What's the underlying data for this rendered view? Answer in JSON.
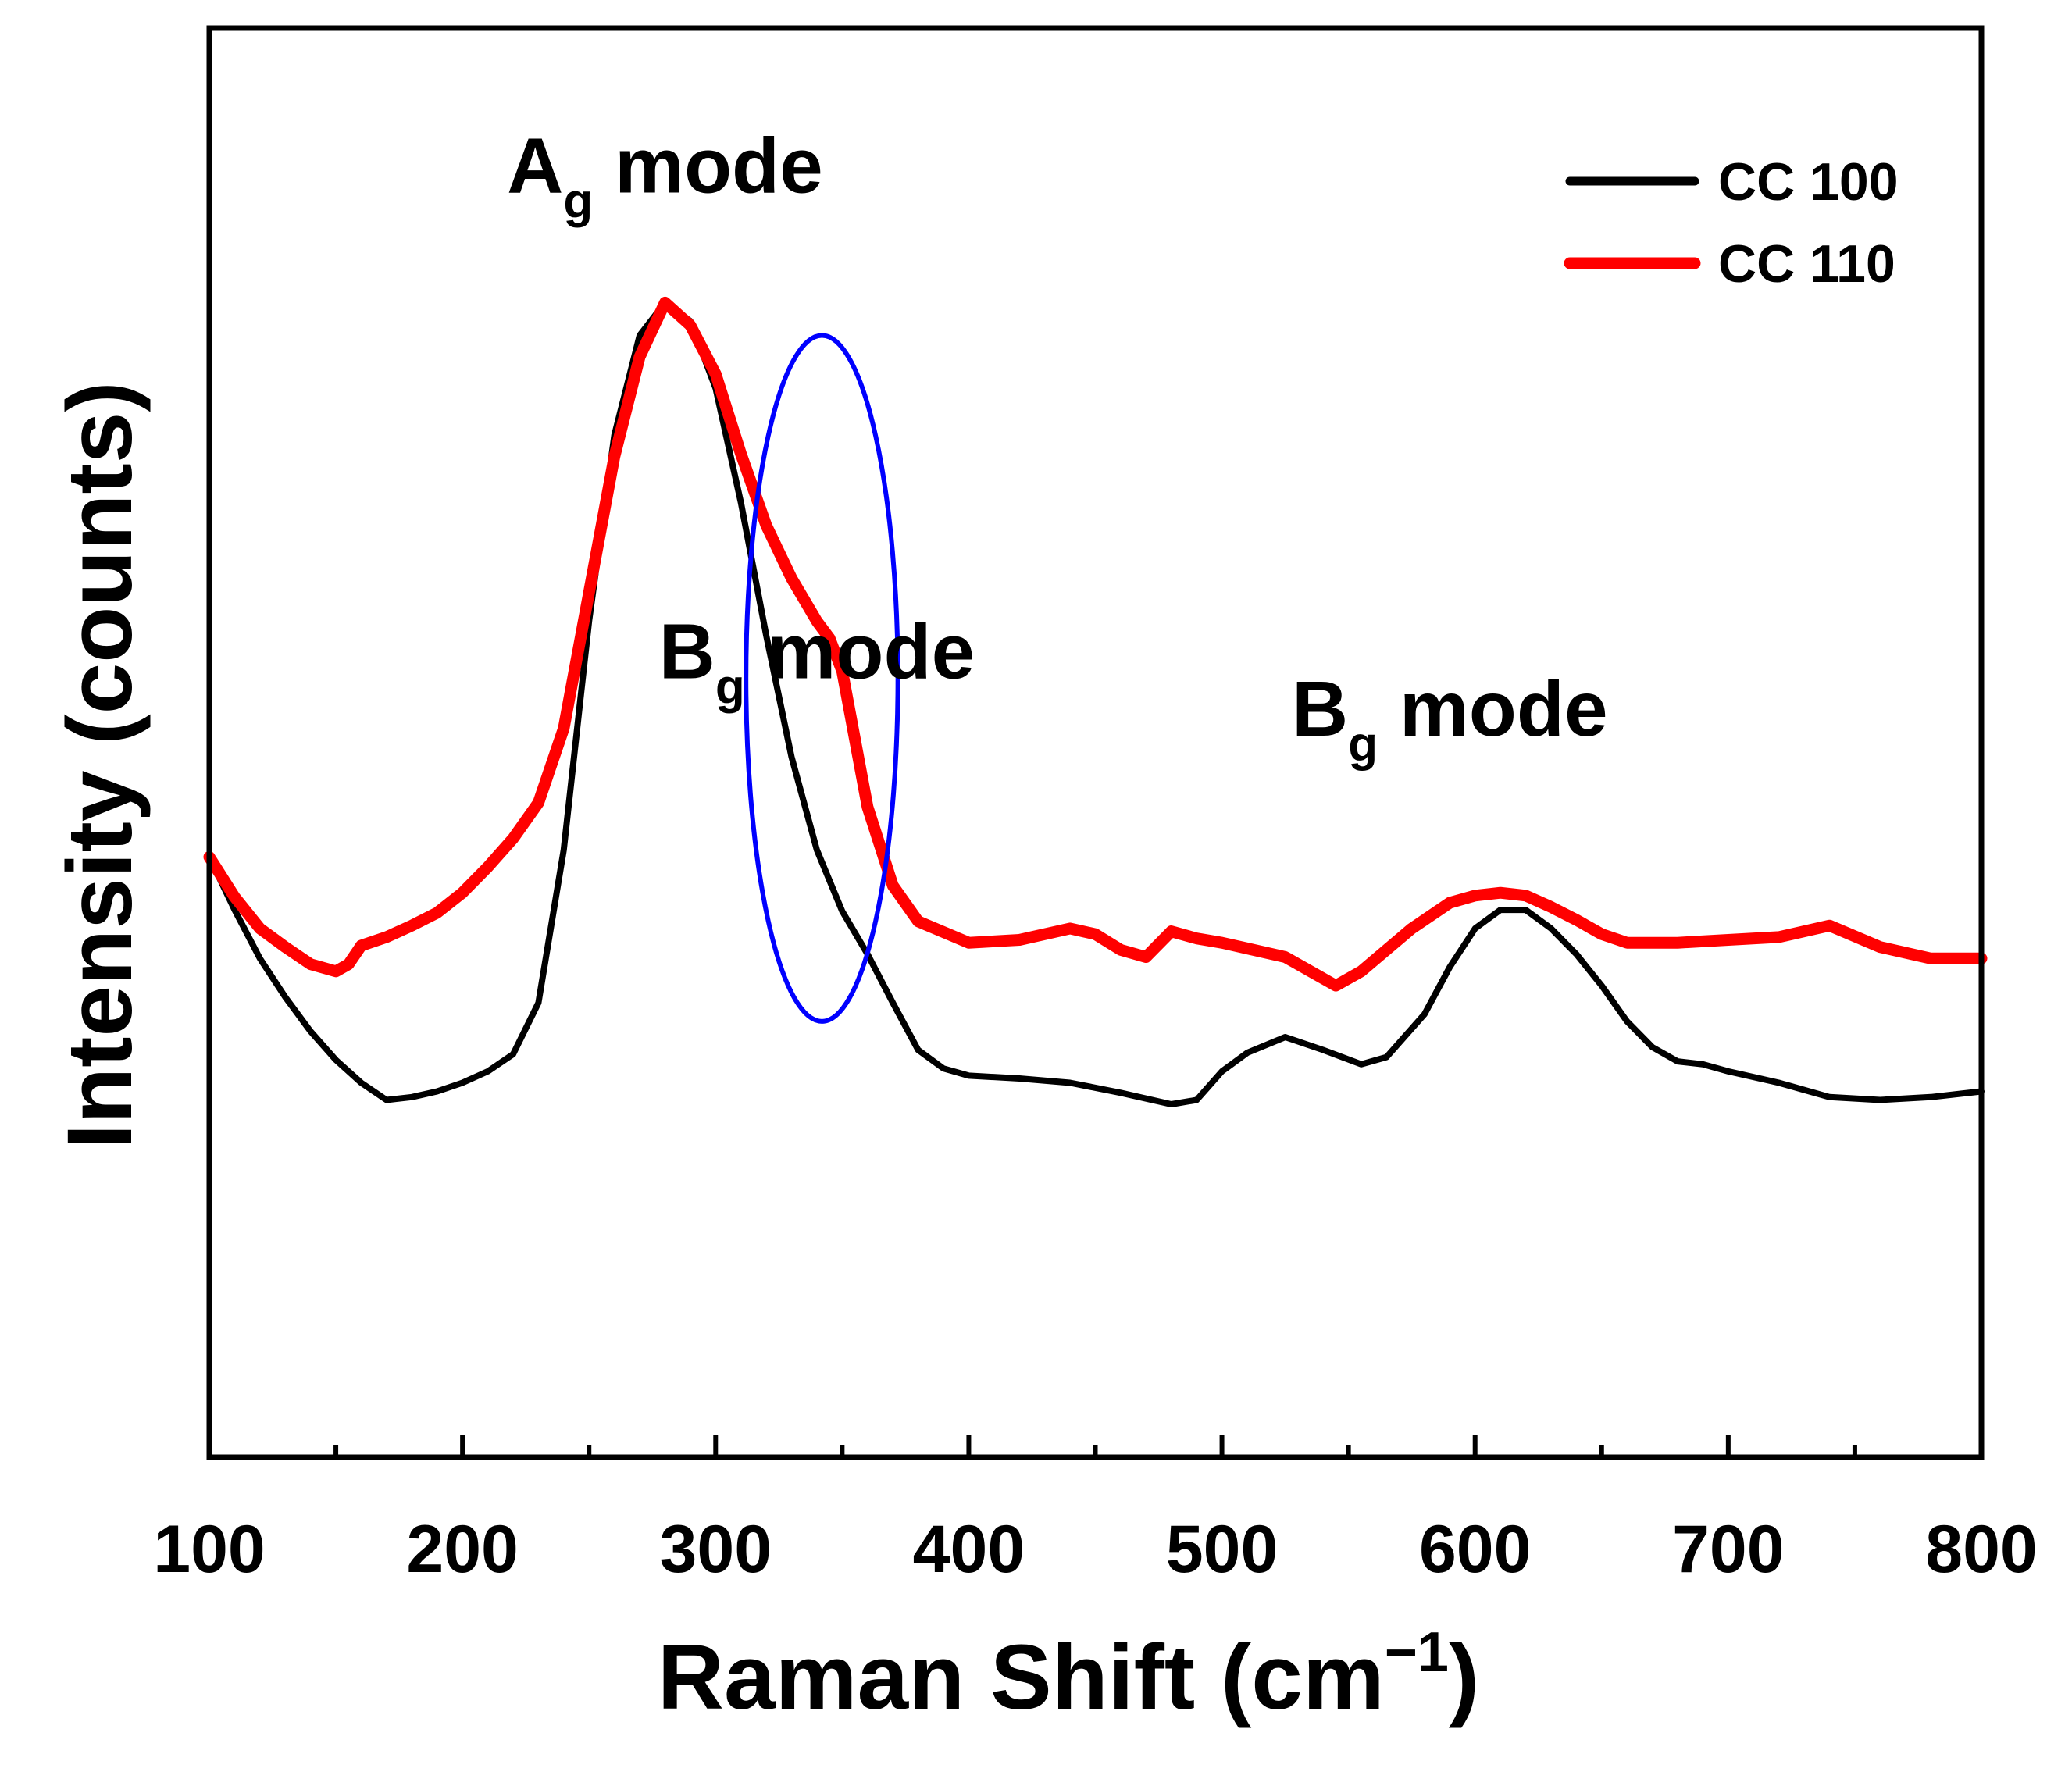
{
  "chart_data": {
    "type": "line",
    "title": "",
    "xlabel": "Raman Shift (cm",
    "xlabel_superscript": "−1",
    "xlabel_close": ")",
    "ylabel": "Intensity (counts)",
    "xlim": [
      100,
      800
    ],
    "ylim": [
      0,
      1
    ],
    "x_ticks": [
      100,
      200,
      300,
      400,
      500,
      600,
      700,
      800
    ],
    "x_tick_labels": [
      "100",
      "200",
      "300",
      "400",
      "500",
      "600",
      "700",
      "800"
    ],
    "y_ticks_shown": false,
    "grid": false,
    "legend_position": "top-right",
    "series": [
      {
        "name": "CC 100",
        "color": "#000000",
        "points": [
          [
            100,
            0.42
          ],
          [
            110,
            0.383
          ],
          [
            120,
            0.349
          ],
          [
            130,
            0.322
          ],
          [
            140,
            0.298
          ],
          [
            150,
            0.278
          ],
          [
            160,
            0.262
          ],
          [
            170,
            0.25
          ],
          [
            180,
            0.252
          ],
          [
            190,
            0.256
          ],
          [
            200,
            0.262
          ],
          [
            210,
            0.27
          ],
          [
            220,
            0.282
          ],
          [
            230,
            0.318
          ],
          [
            240,
            0.425
          ],
          [
            250,
            0.585
          ],
          [
            260,
            0.715
          ],
          [
            270,
            0.785
          ],
          [
            280,
            0.808
          ],
          [
            290,
            0.795
          ],
          [
            300,
            0.748
          ],
          [
            310,
            0.668
          ],
          [
            320,
            0.575
          ],
          [
            330,
            0.49
          ],
          [
            340,
            0.425
          ],
          [
            350,
            0.382
          ],
          [
            360,
            0.352
          ],
          [
            370,
            0.318
          ],
          [
            380,
            0.285
          ],
          [
            390,
            0.272
          ],
          [
            400,
            0.267
          ],
          [
            420,
            0.265
          ],
          [
            440,
            0.262
          ],
          [
            460,
            0.255
          ],
          [
            480,
            0.247
          ],
          [
            490,
            0.25
          ],
          [
            500,
            0.27
          ],
          [
            510,
            0.283
          ],
          [
            525,
            0.294
          ],
          [
            540,
            0.285
          ],
          [
            555,
            0.275
          ],
          [
            565,
            0.28
          ],
          [
            580,
            0.31
          ],
          [
            590,
            0.343
          ],
          [
            600,
            0.37
          ],
          [
            610,
            0.383
          ],
          [
            620,
            0.383
          ],
          [
            630,
            0.37
          ],
          [
            640,
            0.352
          ],
          [
            650,
            0.33
          ],
          [
            660,
            0.305
          ],
          [
            670,
            0.287
          ],
          [
            680,
            0.277
          ],
          [
            690,
            0.275
          ],
          [
            700,
            0.27
          ],
          [
            720,
            0.262
          ],
          [
            740,
            0.252
          ],
          [
            760,
            0.25
          ],
          [
            780,
            0.252
          ],
          [
            800,
            0.256
          ]
        ]
      },
      {
        "name": "CC 110",
        "color": "#ff0000",
        "points": [
          [
            100,
            0.42
          ],
          [
            110,
            0.392
          ],
          [
            120,
            0.37
          ],
          [
            130,
            0.357
          ],
          [
            140,
            0.345
          ],
          [
            150,
            0.34
          ],
          [
            155,
            0.345
          ],
          [
            160,
            0.358
          ],
          [
            170,
            0.364
          ],
          [
            180,
            0.372
          ],
          [
            190,
            0.381
          ],
          [
            200,
            0.395
          ],
          [
            210,
            0.413
          ],
          [
            220,
            0.433
          ],
          [
            230,
            0.458
          ],
          [
            240,
            0.51
          ],
          [
            250,
            0.605
          ],
          [
            260,
            0.7
          ],
          [
            270,
            0.77
          ],
          [
            280,
            0.808
          ],
          [
            290,
            0.792
          ],
          [
            300,
            0.758
          ],
          [
            310,
            0.702
          ],
          [
            320,
            0.652
          ],
          [
            330,
            0.615
          ],
          [
            340,
            0.585
          ],
          [
            345,
            0.573
          ],
          [
            350,
            0.55
          ],
          [
            360,
            0.455
          ],
          [
            370,
            0.4
          ],
          [
            380,
            0.375
          ],
          [
            400,
            0.36
          ],
          [
            420,
            0.362
          ],
          [
            440,
            0.37
          ],
          [
            450,
            0.366
          ],
          [
            460,
            0.355
          ],
          [
            470,
            0.35
          ],
          [
            480,
            0.368
          ],
          [
            490,
            0.363
          ],
          [
            500,
            0.36
          ],
          [
            510,
            0.356
          ],
          [
            525,
            0.35
          ],
          [
            535,
            0.34
          ],
          [
            545,
            0.33
          ],
          [
            555,
            0.34
          ],
          [
            565,
            0.355
          ],
          [
            575,
            0.37
          ],
          [
            590,
            0.388
          ],
          [
            600,
            0.393
          ],
          [
            610,
            0.395
          ],
          [
            620,
            0.393
          ],
          [
            630,
            0.385
          ],
          [
            640,
            0.376
          ],
          [
            650,
            0.366
          ],
          [
            660,
            0.36
          ],
          [
            680,
            0.36
          ],
          [
            700,
            0.362
          ],
          [
            720,
            0.364
          ],
          [
            740,
            0.372
          ],
          [
            760,
            0.357
          ],
          [
            780,
            0.349
          ],
          [
            800,
            0.349
          ]
        ]
      }
    ],
    "annotations": [
      {
        "main": "A",
        "sub": "g",
        "rest": " mode",
        "x": 280,
        "y": 0.885
      },
      {
        "main": "B",
        "sub": "g",
        "rest": " mode",
        "x": 340,
        "y": 0.545
      },
      {
        "main": "B",
        "sub": "g",
        "rest": " mode",
        "x": 590,
        "y": 0.505
      }
    ],
    "highlight_ellipse": {
      "color": "#0000ff",
      "cx": 342,
      "cy": 0.545,
      "rx": 30,
      "ry": 0.24
    }
  }
}
